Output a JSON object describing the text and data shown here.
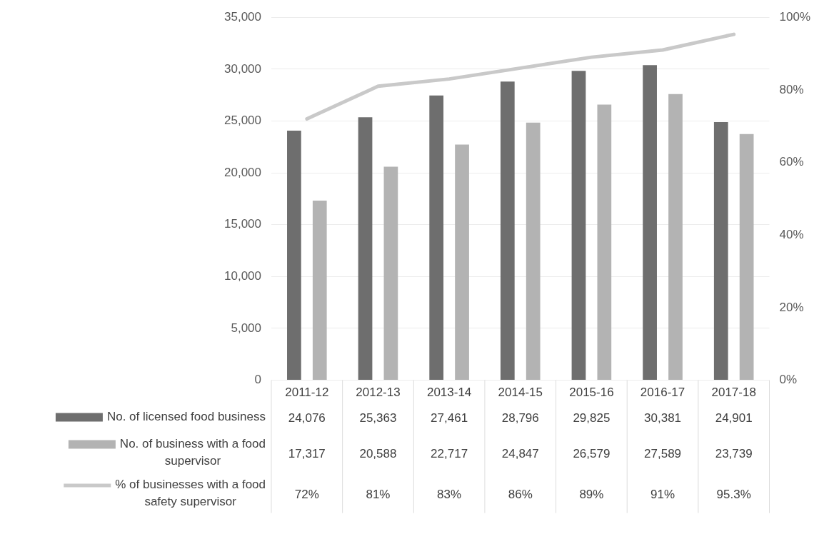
{
  "chart_data": {
    "type": "bar",
    "categories": [
      "2011-12",
      "2012-13",
      "2013-14",
      "2014-15",
      "2015-16",
      "2016-17",
      "2017-18"
    ],
    "series": [
      {
        "name": "No. of licensed food business",
        "color": "#6e6e6e",
        "values": [
          24076,
          25363,
          27461,
          28796,
          29825,
          30381,
          24901
        ],
        "value_labels": [
          "24,076",
          "25,363",
          "27,461",
          "28,796",
          "29,825",
          "30,381",
          "24,901"
        ]
      },
      {
        "name": "No. of business with a food supervisor",
        "color": "#b3b3b3",
        "values": [
          17317,
          20588,
          22717,
          24847,
          26579,
          27589,
          23739
        ],
        "value_labels": [
          "17,317",
          "20,588",
          "22,717",
          "24,847",
          "26,579",
          "27,589",
          "23,739"
        ]
      },
      {
        "name": "% of businesses with a food safety supervisor",
        "type": "line",
        "axis": "y2",
        "color": "#c9c9c9",
        "values": [
          72,
          81,
          83,
          86,
          89,
          91,
          95.3
        ],
        "value_labels": [
          "72%",
          "81%",
          "83%",
          "86%",
          "89%",
          "91%",
          "95.3%"
        ]
      }
    ],
    "ylim": [
      0,
      35000
    ],
    "yticks": [
      {
        "value": 0,
        "label": "0"
      },
      {
        "value": 5000,
        "label": "5,000"
      },
      {
        "value": 10000,
        "label": "10,000"
      },
      {
        "value": 15000,
        "label": "15,000"
      },
      {
        "value": 20000,
        "label": "20,000"
      },
      {
        "value": 25000,
        "label": "25,000"
      },
      {
        "value": 30000,
        "label": "30,000"
      },
      {
        "value": 35000,
        "label": "35,000"
      }
    ],
    "y2lim": [
      0,
      100
    ],
    "y2ticks": [
      {
        "value": 0,
        "label": "0%"
      },
      {
        "value": 20,
        "label": "20%"
      },
      {
        "value": 40,
        "label": "40%"
      },
      {
        "value": 60,
        "label": "60%"
      },
      {
        "value": 80,
        "label": "80%"
      },
      {
        "value": 100,
        "label": "100%"
      }
    ],
    "grid": "y",
    "legend": "bottom",
    "marker": "none"
  }
}
